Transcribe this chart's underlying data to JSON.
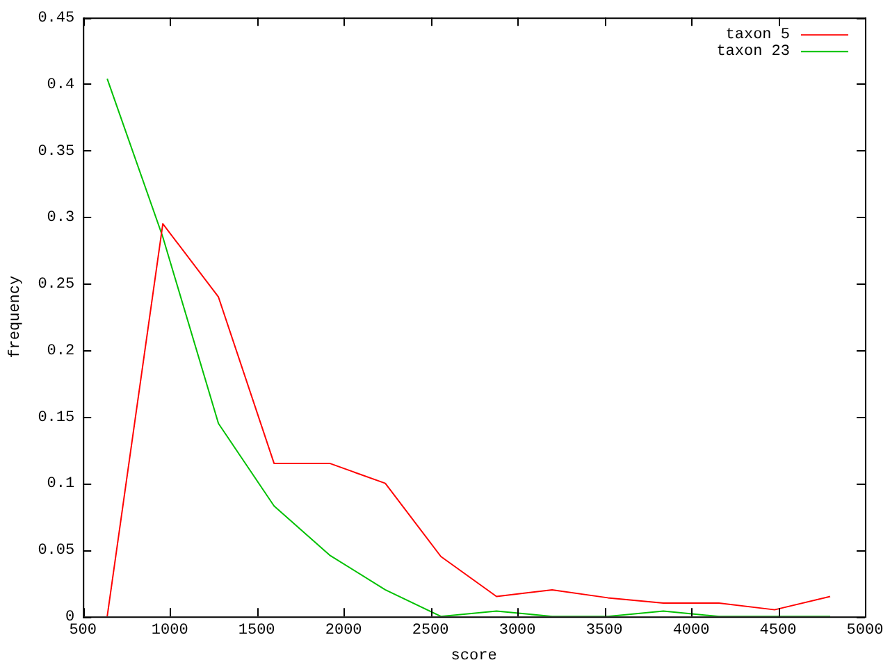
{
  "chart_data": {
    "type": "line",
    "xlabel": "score",
    "ylabel": "frequency",
    "x": [
      640,
      960,
      1280,
      1600,
      1920,
      2240,
      2560,
      2880,
      3200,
      3520,
      3840,
      4160,
      4480,
      4800
    ],
    "series": [
      {
        "name": "taxon 5",
        "color": "#ff0000",
        "values": [
          0,
          0.295,
          0.24,
          0.115,
          0.115,
          0.1,
          0.045,
          0.015,
          0.02,
          0.014,
          0.01,
          0.01,
          0.005,
          0.015
        ]
      },
      {
        "name": "taxon 23",
        "color": "#00c000",
        "values": [
          0.404,
          0.285,
          0.145,
          0.083,
          0.046,
          0.02,
          0,
          0.004,
          0,
          0,
          0.004,
          0,
          0,
          0
        ]
      }
    ],
    "xlim": [
      500,
      5000
    ],
    "xticks": [
      500,
      1000,
      1500,
      2000,
      2500,
      3000,
      3500,
      4000,
      4500,
      5000
    ],
    "ylim": [
      0,
      0.45
    ],
    "yticks": [
      0,
      0.05,
      0.1,
      0.15,
      0.2,
      0.25,
      0.3,
      0.35,
      0.4,
      0.45
    ],
    "grid": false,
    "legend": "top right",
    "marker": "none",
    "line_style": "solid"
  }
}
